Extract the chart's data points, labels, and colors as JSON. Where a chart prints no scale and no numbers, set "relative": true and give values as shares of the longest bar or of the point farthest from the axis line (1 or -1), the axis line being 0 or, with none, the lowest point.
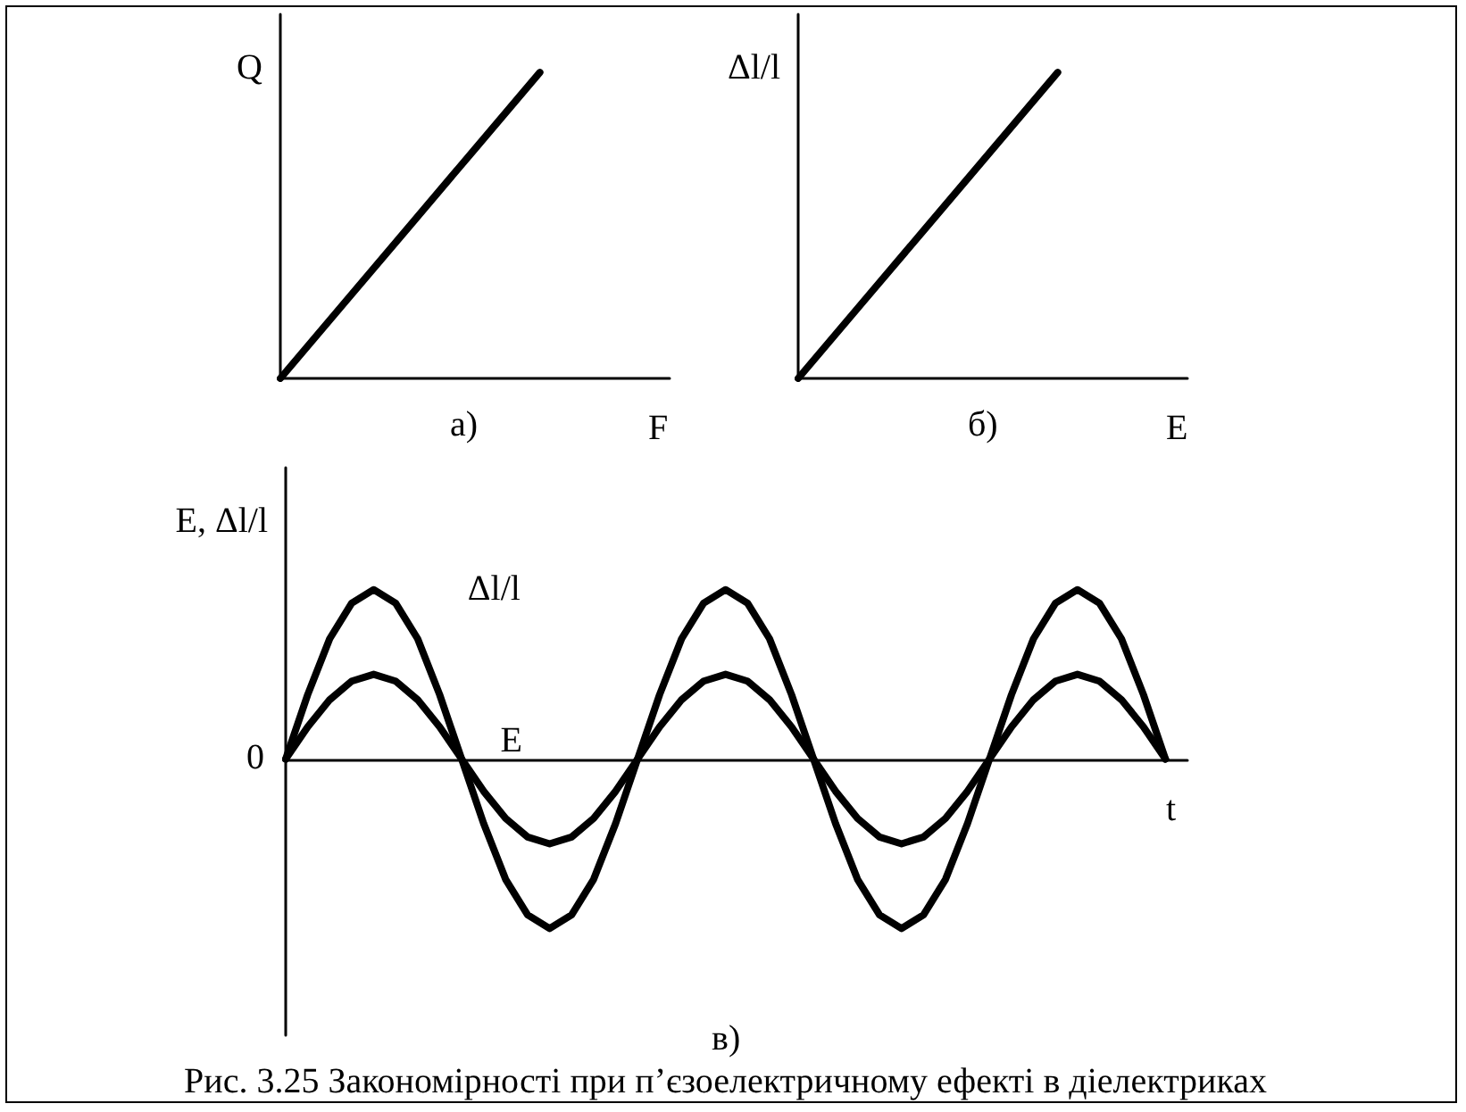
{
  "chart_data": [
    {
      "type": "line",
      "title": "а)",
      "xlabel": "F",
      "ylabel": "Q",
      "relative": true,
      "grid": false,
      "legend": false,
      "marker": "none",
      "line_style": "solid",
      "categories": [
        null,
        null,
        null,
        null,
        null,
        null,
        null
      ],
      "series": [
        {
          "color": "#000000",
          "values": [
            0,
            0.25,
            0.5,
            0.75,
            1,
            null,
            null
          ]
        }
      ]
    },
    {
      "type": "line",
      "title": "б)",
      "xlabel": "E",
      "ylabel": "Δl/l",
      "relative": true,
      "grid": false,
      "legend": false,
      "marker": "none",
      "line_style": "solid",
      "categories": [
        null,
        null,
        null,
        null,
        null,
        null,
        null
      ],
      "series": [
        {
          "color": "#000000",
          "values": [
            0,
            0.25,
            0.5,
            0.75,
            1,
            null,
            null
          ]
        }
      ]
    },
    {
      "type": "line",
      "title": "в)",
      "xlabel": "t",
      "ylabel": "E, Δl/l",
      "relative": true,
      "grid": false,
      "legend": false,
      "marker": "none",
      "line_style": "solid",
      "annotations": [
        "0",
        "Рис. 3.25 Закономірності при п’єзоелектричному ефекті в діелектриках"
      ],
      "categories": [
        null,
        null,
        null,
        null,
        null,
        null,
        null,
        null,
        null,
        null,
        null,
        null,
        null,
        null,
        null,
        null,
        null,
        null,
        null,
        null,
        null,
        null,
        null,
        null,
        null,
        null,
        null,
        null,
        null,
        null,
        null,
        null,
        null,
        null,
        null,
        null,
        null,
        null,
        null,
        null,
        null,
        null
      ],
      "series": [
        {
          "name": "Δl/l",
          "color": "#000000",
          "values": [
            0,
            0.38,
            0.71,
            0.92,
            1,
            0.92,
            0.71,
            0.38,
            0,
            -0.38,
            -0.71,
            -0.92,
            -1,
            -0.92,
            -0.71,
            -0.38,
            0,
            0.38,
            0.71,
            0.92,
            1,
            0.92,
            0.71,
            0.38,
            0,
            -0.38,
            -0.71,
            -0.92,
            -1,
            -0.92,
            -0.71,
            -0.38,
            0,
            0.38,
            0.71,
            0.92,
            1,
            0.92,
            0.71,
            0.38,
            0,
            null
          ]
        },
        {
          "name": "E",
          "color": "#000000",
          "values": [
            0,
            0.19,
            0.35,
            0.46,
            0.5,
            0.46,
            0.35,
            0.19,
            0,
            -0.19,
            -0.35,
            -0.46,
            -0.5,
            -0.46,
            -0.35,
            -0.19,
            0,
            0.19,
            0.35,
            0.46,
            0.5,
            0.46,
            0.35,
            0.19,
            0,
            -0.19,
            -0.35,
            -0.46,
            -0.5,
            -0.46,
            -0.35,
            -0.19,
            0,
            0.19,
            0.35,
            0.46,
            0.5,
            0.46,
            0.35,
            0.19,
            0,
            null
          ]
        }
      ]
    }
  ]
}
